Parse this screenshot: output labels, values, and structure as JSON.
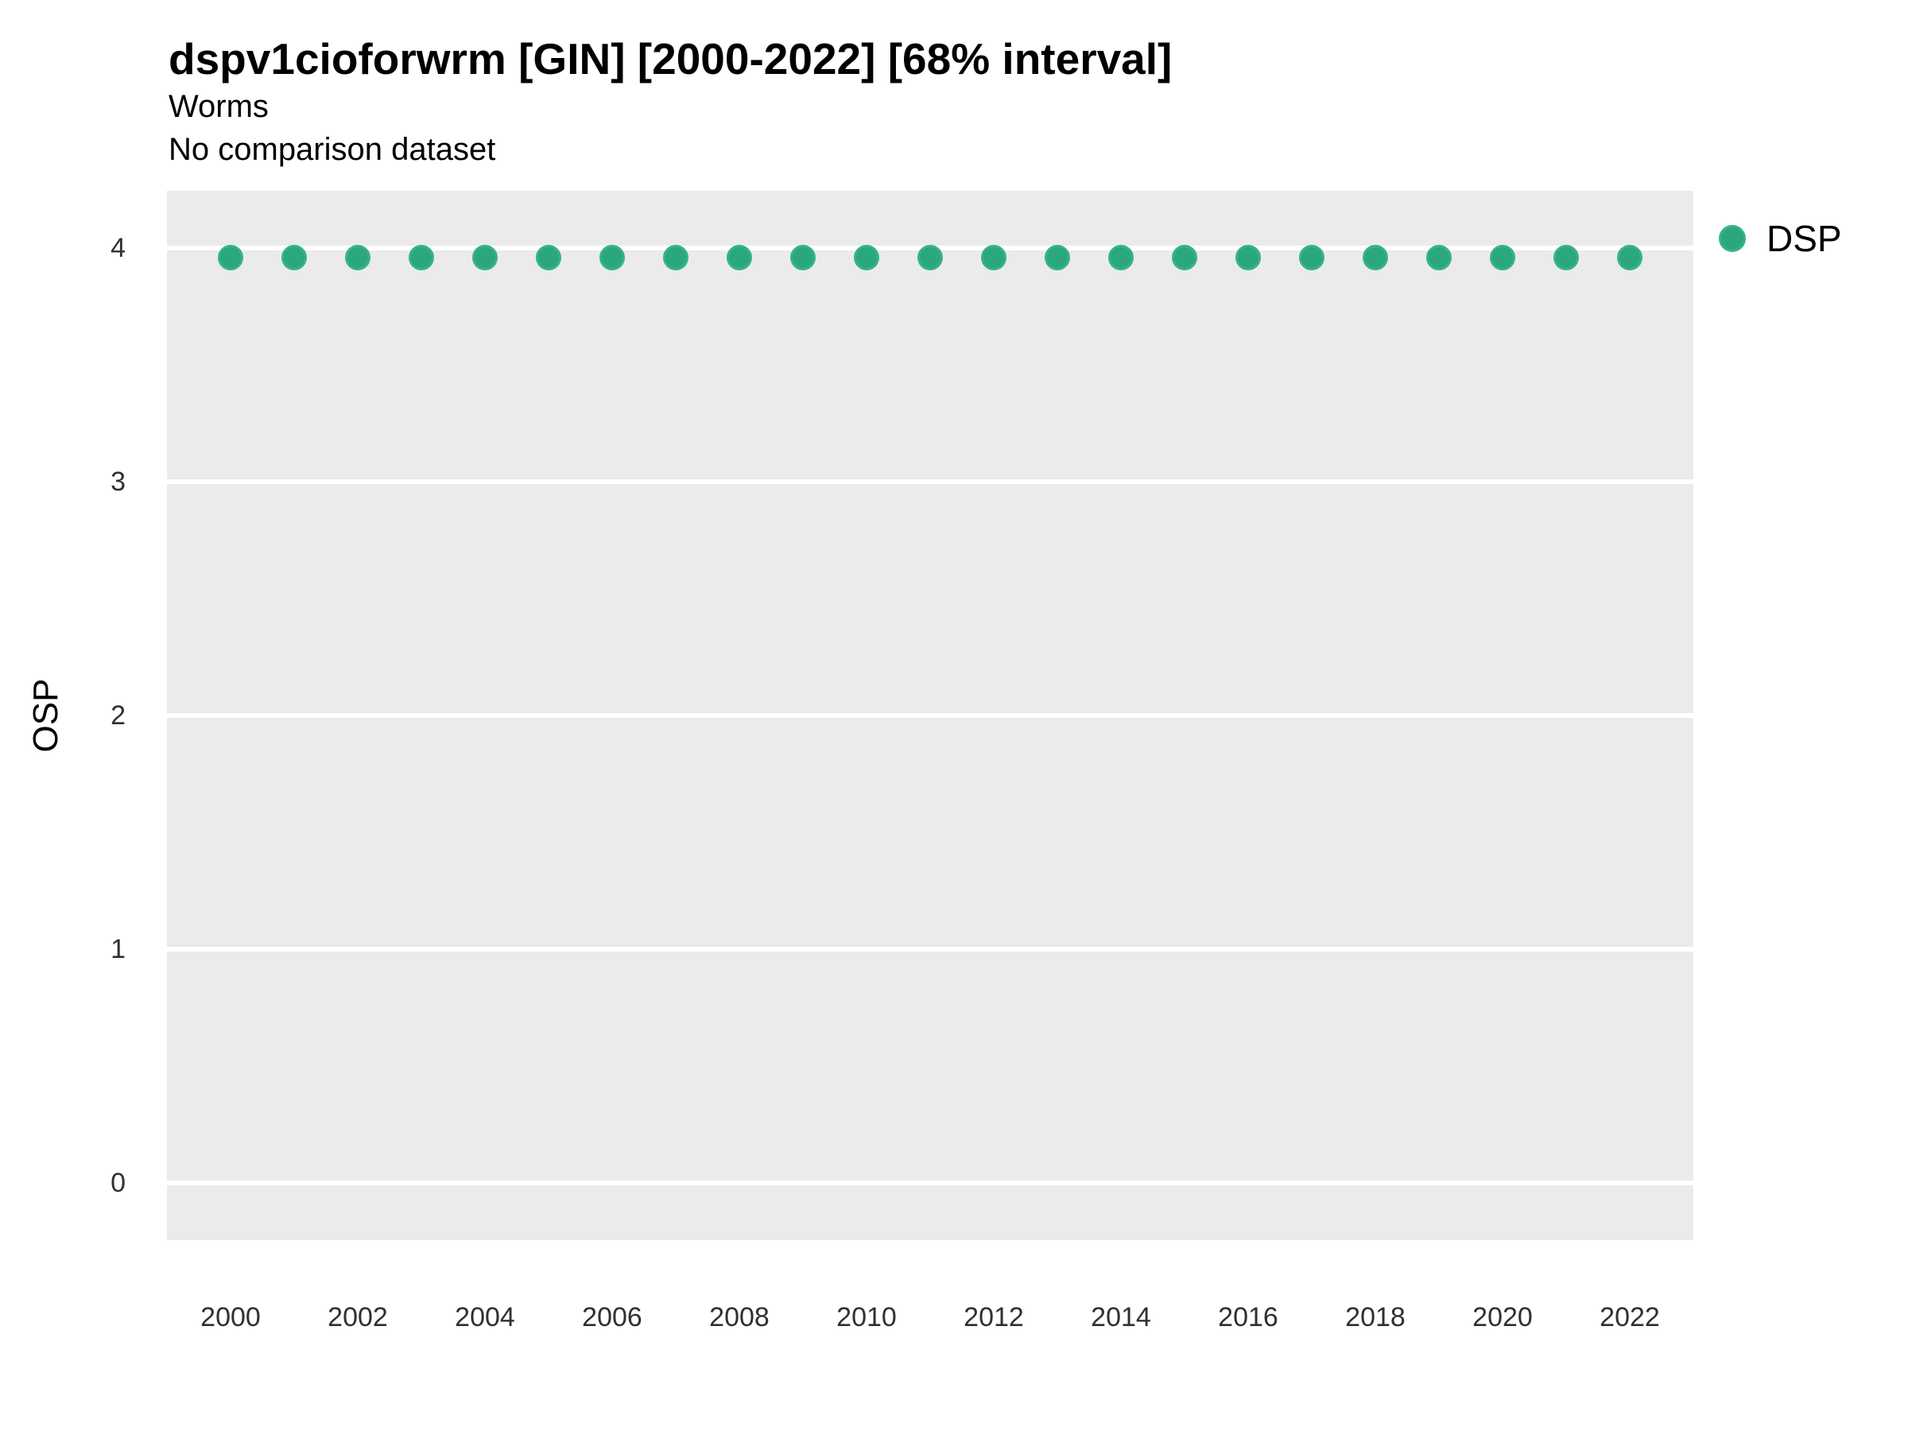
{
  "colors": {
    "point_fill": "#2aa77e",
    "point_stroke": "#36b388",
    "panel_background": "#ebebeb",
    "gridline": "#ffffff",
    "title_text": "#000000",
    "tick_text": "#303030"
  },
  "legend": {
    "position": "right-top",
    "items": [
      {
        "label": "DSP",
        "marker": "filled-circle"
      }
    ]
  },
  "chart_data": {
    "type": "scatter",
    "title": "dspv1cioforwrm [GIN] [2000-2022] [68% interval]",
    "subtitle": "Worms",
    "note": "No comparison dataset",
    "xlabel": "",
    "ylabel": "OSP",
    "xlim": [
      1999,
      2023
    ],
    "ylim": [
      -0.245,
      4.245
    ],
    "xticks": [
      2000,
      2002,
      2004,
      2006,
      2008,
      2010,
      2012,
      2014,
      2016,
      2018,
      2020,
      2022
    ],
    "yticks": [
      0,
      1,
      2,
      3,
      4
    ],
    "grid": "horizontal-major-only",
    "legend_position": "right-top",
    "series": [
      {
        "name": "DSP",
        "x": [
          2000,
          2001,
          2002,
          2003,
          2004,
          2005,
          2006,
          2007,
          2008,
          2009,
          2010,
          2011,
          2012,
          2013,
          2014,
          2015,
          2016,
          2017,
          2018,
          2019,
          2020,
          2021,
          2022
        ],
        "y": [
          3.96,
          3.96,
          3.96,
          3.96,
          3.96,
          3.96,
          3.96,
          3.96,
          3.96,
          3.96,
          3.96,
          3.96,
          3.96,
          3.96,
          3.96,
          3.96,
          3.96,
          3.96,
          3.96,
          3.96,
          3.96,
          3.96,
          3.96
        ]
      }
    ]
  }
}
